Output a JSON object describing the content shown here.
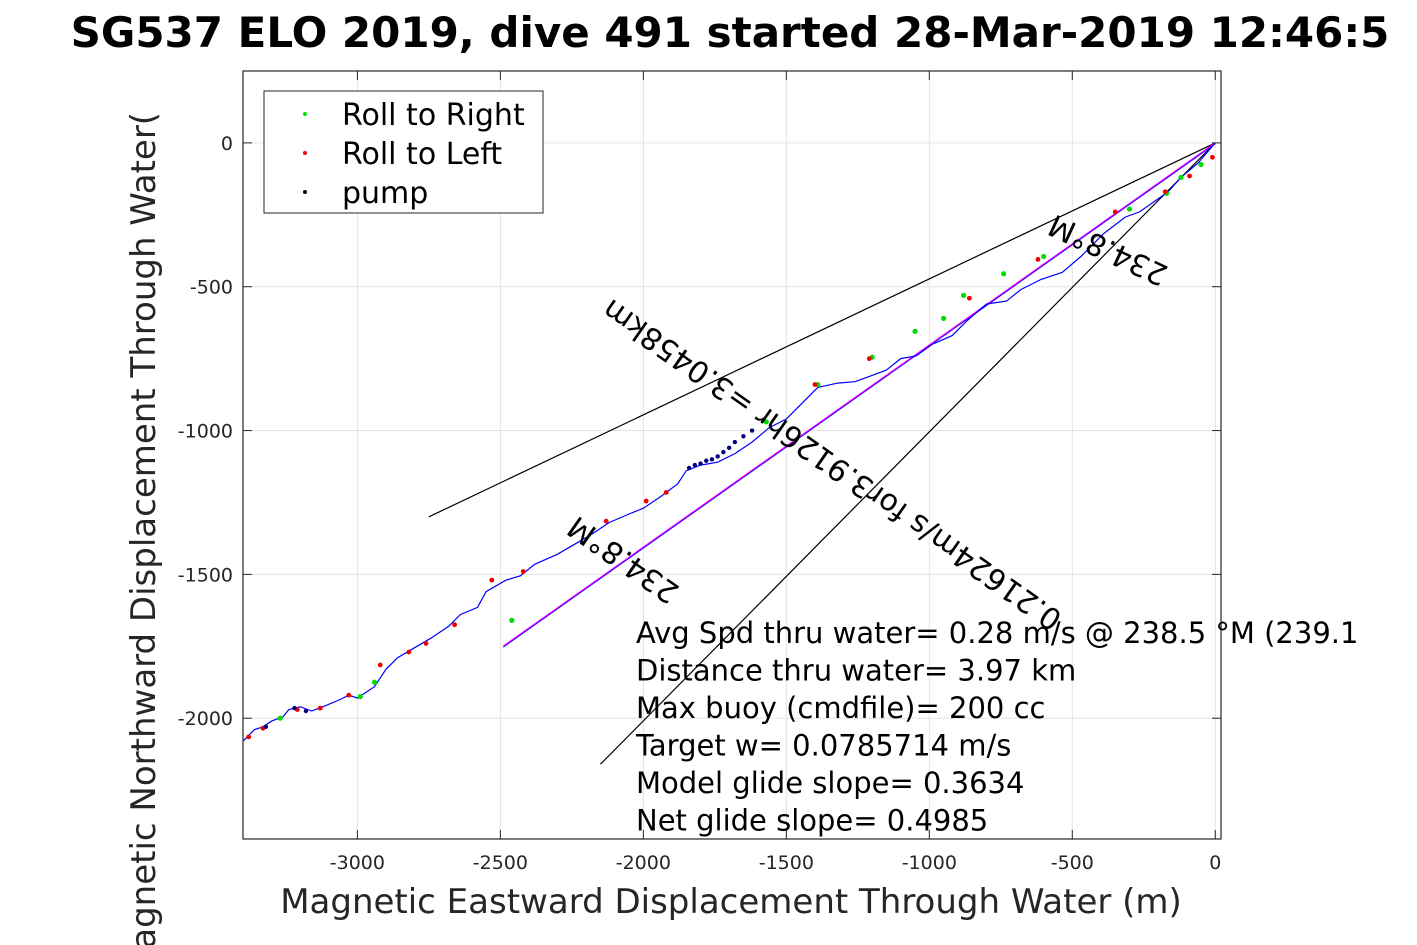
{
  "chart_data": {
    "type": "line",
    "title": "SG537 ELO 2019, dive 491 started 28-Mar-2019 12:46:5",
    "xlabel": "Magnetic Eastward Displacement Through Water (m)",
    "ylabel": "Magnetic Northward Displacement Through Water(",
    "xlim": [
      -3400,
      20
    ],
    "ylim": [
      -2420,
      250
    ],
    "xticks": [
      -3000,
      -2500,
      -2000,
      -1500,
      -1000,
      -500,
      0
    ],
    "xtick_labels": [
      "-3000",
      "-2500",
      "-2000",
      "-1500",
      "-1000",
      "-500",
      "0"
    ],
    "yticks": [
      0,
      -500,
      -1000,
      -1500,
      -2000
    ],
    "ytick_labels": [
      "0",
      "-500",
      "-1000",
      "-1500",
      "-2000"
    ],
    "grid": true,
    "legend_position": "top-left",
    "legend": [
      {
        "label": "Roll to Right",
        "color": "#00dd00"
      },
      {
        "label": "Roll to Left",
        "color": "#ee0000"
      },
      {
        "label": "pump",
        "color": "#000000"
      }
    ],
    "colors": {
      "track": "#0000ff",
      "current": "#000000",
      "target": "#ff00ff",
      "pump": "#000080"
    },
    "track": {
      "x": [
        0,
        -60,
        -120,
        -165,
        -215,
        -265,
        -315,
        -390,
        -470,
        -535,
        -610,
        -680,
        -730,
        -800,
        -870,
        -920,
        -990,
        -1045,
        -1100,
        -1150,
        -1205,
        -1260,
        -1320,
        -1390,
        -1450,
        -1500,
        -1560,
        -1620,
        -1680,
        -1740,
        -1800,
        -1850,
        -1880,
        -1940,
        -2000,
        -2050,
        -2120,
        -2180,
        -2240,
        -2300,
        -2380,
        -2430,
        -2480,
        -2550,
        -2580,
        -2640,
        -2680,
        -2740,
        -2800,
        -2860,
        -2900,
        -2940,
        -3000,
        -3030,
        -3060,
        -3120,
        -3160,
        -3200,
        -3240,
        -3260,
        -3300,
        -3330,
        -3360,
        -3400
      ],
      "y": [
        0,
        -70,
        -120,
        -170,
        -205,
        -240,
        -258,
        -315,
        -395,
        -450,
        -475,
        -510,
        -550,
        -560,
        -620,
        -670,
        -700,
        -740,
        -750,
        -790,
        -810,
        -830,
        -835,
        -850,
        -910,
        -960,
        -990,
        -1040,
        -1080,
        -1110,
        -1120,
        -1140,
        -1185,
        -1230,
        -1270,
        -1290,
        -1320,
        -1360,
        -1395,
        -1430,
        -1465,
        -1505,
        -1520,
        -1560,
        -1615,
        -1640,
        -1680,
        -1720,
        -1755,
        -1790,
        -1830,
        -1890,
        -1930,
        -1920,
        -1935,
        -1960,
        -1975,
        -1960,
        -1970,
        -1995,
        -2010,
        -2030,
        -2040,
        -2080
      ]
    },
    "roll_right": {
      "x": [
        -50,
        -120,
        -170,
        -300,
        -600,
        -740,
        -880,
        -950,
        -1050,
        -1200,
        -1390,
        -1570,
        -2460,
        -2940,
        -2990,
        -3270
      ],
      "y": [
        -75,
        -120,
        -175,
        -230,
        -395,
        -455,
        -530,
        -610,
        -655,
        -745,
        -840,
        -970,
        -1660,
        -1875,
        -1925,
        -2000
      ]
    },
    "roll_left": {
      "x": [
        -10,
        -90,
        -175,
        -350,
        -620,
        -860,
        -1210,
        -1400,
        -1920,
        -1990,
        -2130,
        -2420,
        -2530,
        -2660,
        -2760,
        -2820,
        -2920,
        -3030,
        -3130,
        -3210,
        -3330,
        -3380
      ],
      "y": [
        -50,
        -115,
        -170,
        -240,
        -405,
        -540,
        -750,
        -840,
        -1215,
        -1245,
        -1315,
        -1490,
        -1520,
        -1675,
        -1740,
        -1770,
        -1815,
        -1920,
        -1965,
        -1970,
        -2035,
        -2065
      ]
    },
    "pump": {
      "x": [
        -1620,
        -1650,
        -1680,
        -1700,
        -1720,
        -1740,
        -1760,
        -1780,
        -1800,
        -1820,
        -1840,
        -3180,
        -3220,
        -3320
      ],
      "y": [
        -1000,
        -1020,
        -1040,
        -1060,
        -1075,
        -1090,
        -1100,
        -1105,
        -1115,
        -1120,
        -1130,
        -1975,
        -1965,
        -2030
      ]
    },
    "current_lines": [
      {
        "x": [
          0,
          -2750
        ],
        "y": [
          0,
          -1300
        ]
      },
      {
        "x": [
          0,
          -2150
        ],
        "y": [
          0,
          -2160
        ]
      }
    ],
    "target_line": {
      "x": [
        0,
        -2490
      ],
      "y": [
        0,
        -1750
      ]
    },
    "rotated_labels": [
      {
        "text": "234.8°M",
        "x": -360,
        "y": -340,
        "angle": 205
      },
      {
        "text": "234.8°M",
        "x": -2050,
        "y": -1420,
        "angle": 215
      },
      {
        "text": "0.21624m/s for3.9126hr =3.0458km",
        "x": -1320,
        "y": -1090,
        "angle": 215
      }
    ],
    "annotations": [
      "Avg Spd thru water=  0.28 m/s @ 238.5 °M (239.1",
      "Distance thru water=  3.97 km",
      "Max buoy (cmdfile)= 200 cc",
      "Target w= 0.0785714 m/s",
      "Model glide slope= 0.3634",
      "Net glide slope= 0.4985"
    ]
  }
}
